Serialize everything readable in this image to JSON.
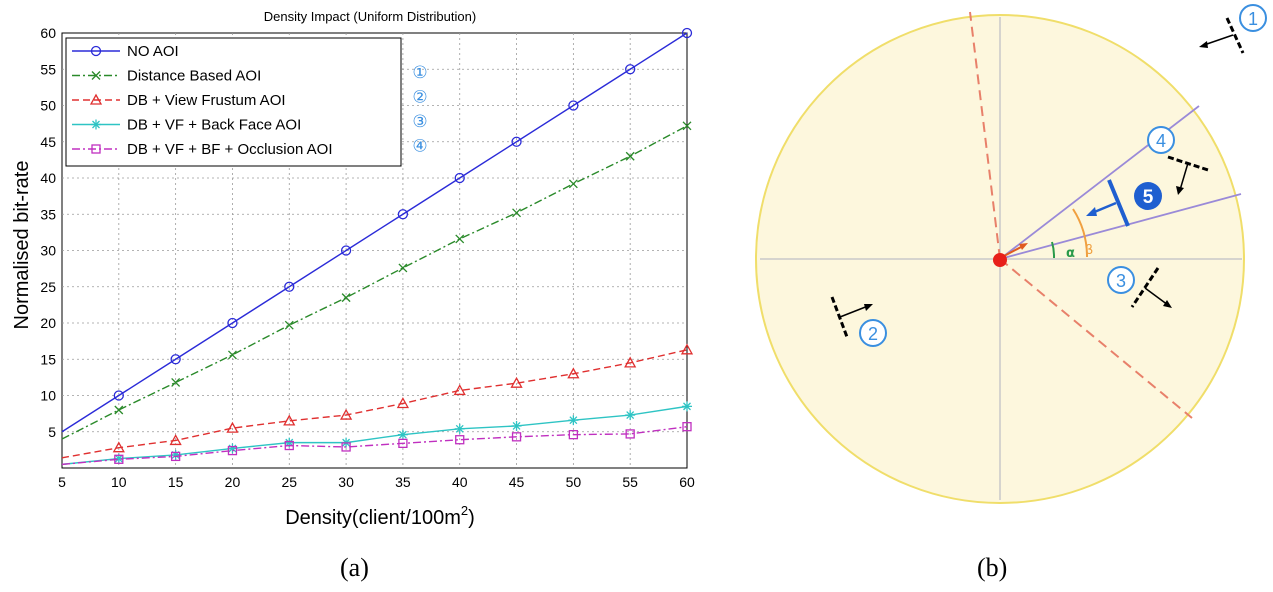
{
  "chart_data": {
    "type": "line",
    "title": "Density Impact (Uniform Distribution)",
    "xlabel": "Density(client/100m",
    "xlabel_sup": "2",
    "xlabel_close": ")",
    "ylabel": "Normalised bit-rate",
    "xlim": [
      5,
      60
    ],
    "ylim": [
      0,
      60
    ],
    "x": [
      5,
      10,
      15,
      20,
      25,
      30,
      35,
      40,
      45,
      50,
      55,
      60
    ],
    "x_ticks": [
      "5",
      "10",
      "15",
      "20",
      "25",
      "30",
      "35",
      "40",
      "45",
      "50",
      "55",
      "60"
    ],
    "y_ticks": [
      {
        "value": 5,
        "label": "5"
      },
      {
        "value": 10,
        "label": "10"
      },
      {
        "value": 15,
        "label": "15"
      },
      {
        "value": 20,
        "label": "20"
      },
      {
        "value": 25,
        "label": "25"
      },
      {
        "value": 30,
        "label": "30"
      },
      {
        "value": 35,
        "label": "35"
      },
      {
        "value": 40,
        "label": "40"
      },
      {
        "value": 45,
        "label": "45"
      },
      {
        "value": 50,
        "label": "50"
      },
      {
        "value": 55,
        "label": "55"
      },
      {
        "value": 60,
        "label": "60"
      }
    ],
    "grid": true,
    "legend_position": "top-left",
    "series": [
      {
        "name": "NO AOI",
        "color": "#2b2bd8",
        "marker": "circle",
        "dash": "solid",
        "values": [
          5,
          10,
          15,
          20,
          25,
          30,
          35,
          40,
          45,
          50,
          55,
          60
        ]
      },
      {
        "name": "Distance Based AOI",
        "color": "#2a8a2a",
        "marker": "x",
        "dash": "dashdot",
        "values": [
          4,
          8,
          11.8,
          15.6,
          19.7,
          23.5,
          27.6,
          31.6,
          35.2,
          39.2,
          43,
          47.2
        ]
      },
      {
        "name": "DB + View Frustum AOI",
        "color": "#e03030",
        "marker": "triangle",
        "dash": "dashed",
        "values": [
          1.4,
          2.8,
          3.8,
          5.5,
          6.5,
          7.3,
          8.9,
          10.7,
          11.7,
          13,
          14.5,
          16.3
        ]
      },
      {
        "name": "DB + VF + Back Face AOI",
        "color": "#2ec4c4",
        "marker": "star",
        "dash": "solid",
        "values": [
          0.5,
          1.3,
          1.8,
          2.7,
          3.5,
          3.5,
          4.6,
          5.4,
          5.8,
          6.6,
          7.3,
          8.5
        ]
      },
      {
        "name": "DB + VF + BF + Occlusion AOI",
        "color": "#c030c0",
        "marker": "square",
        "dash": "dashdot",
        "values": [
          0.5,
          1.2,
          1.6,
          2.4,
          3.1,
          2.9,
          3.4,
          3.9,
          4.3,
          4.6,
          4.7,
          5.7
        ]
      }
    ],
    "annotations": [
      "①",
      "②",
      "③",
      "④"
    ]
  },
  "diagram": {
    "labels": {
      "one": "1",
      "two": "2",
      "three": "3",
      "four": "4",
      "five": "5",
      "alpha": "α",
      "beta": "β"
    },
    "colors": {
      "disc_fill": "#fdf7dd",
      "disc_stroke": "#f0de6a",
      "badge": "#3a8fe0",
      "frustum": "#9a8ad8",
      "dashed_red": "#e8806a",
      "center": "#e8201a",
      "blue_bar": "#1f5fd0"
    }
  },
  "captions": {
    "a": "(a)",
    "b": "(b)"
  }
}
